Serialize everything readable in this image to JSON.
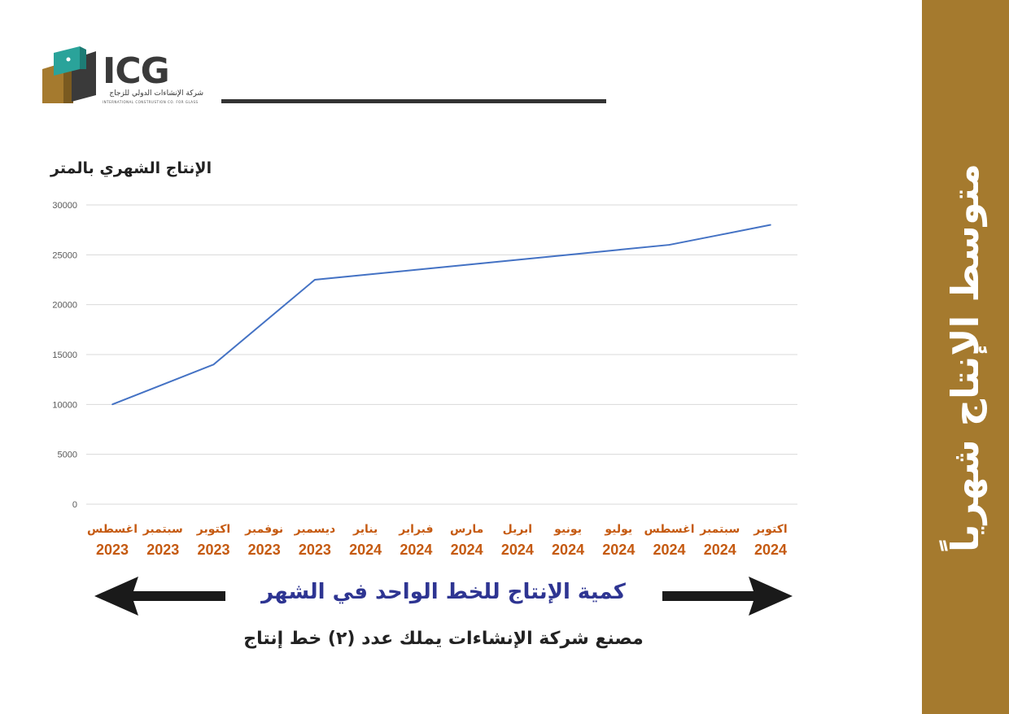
{
  "sidebar": {
    "title": "متوسط الإنتاج شهرياً"
  },
  "logo": {
    "text": "ICG",
    "arabic_name": "شركة الإنشاءات الدولي للزجاج",
    "english_name": "INTERNATIONAL CONSTRUSTION CO. FOR GLASS"
  },
  "colors": {
    "sidebar": "#a57a2e",
    "line": "#4472c4",
    "month_labels": "#c55a11",
    "caption": "#2e3592"
  },
  "chart_data": {
    "type": "line",
    "title": "الإنتاج الشهري بالمتر",
    "categories": [
      {
        "month": "اغسطس",
        "year": "2023"
      },
      {
        "month": "سبتمبر",
        "year": "2023"
      },
      {
        "month": "اكتوبر",
        "year": "2023"
      },
      {
        "month": "نوفمبر",
        "year": "2023"
      },
      {
        "month": "ديسمبر",
        "year": "2023"
      },
      {
        "month": "يناير",
        "year": "2024"
      },
      {
        "month": "فبراير",
        "year": "2024"
      },
      {
        "month": "مارس",
        "year": "2024"
      },
      {
        "month": "ابريل",
        "year": "2024"
      },
      {
        "month": "يونيو",
        "year": "2024"
      },
      {
        "month": "يوليو",
        "year": "2024"
      },
      {
        "month": "اغسطس",
        "year": "2024"
      },
      {
        "month": "سبتمبر",
        "year": "2024"
      },
      {
        "month": "اكتوبر",
        "year": "2024"
      }
    ],
    "values": [
      10000,
      12000,
      14000,
      18250,
      22500,
      23000,
      23500,
      24000,
      24500,
      25000,
      25500,
      26000,
      27000,
      28000
    ],
    "ylim": [
      0,
      30000
    ],
    "yticks": [
      0,
      5000,
      10000,
      15000,
      20000,
      25000,
      30000
    ],
    "grid": true,
    "legend": "none"
  },
  "caption": "كمية الإنتاج للخط الواحد في الشهر",
  "footnote": "مصنع شركة الإنشاءات يملك عدد (٢) خط إنتاج"
}
